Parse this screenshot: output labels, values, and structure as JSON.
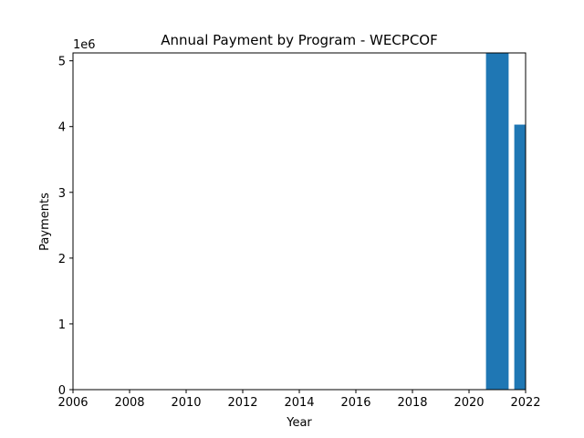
{
  "chart_data": {
    "type": "bar",
    "title": "Annual Payment by Program - WECPCOF",
    "xlabel": "Year",
    "ylabel": "Payments",
    "y_offset_label": "1e6",
    "xlim": [
      2006,
      2022
    ],
    "ylim": [
      0,
      5.12
    ],
    "y_multiplier": 1000000,
    "x_ticks": [
      2006,
      2008,
      2010,
      2012,
      2014,
      2016,
      2018,
      2020,
      2022
    ],
    "y_ticks": [
      0,
      1,
      2,
      3,
      4,
      5
    ],
    "bar_width": 0.8,
    "bars": [
      {
        "x": 2021,
        "value": 5.12
      },
      {
        "x": 2022,
        "value": 4.03
      }
    ],
    "color": "#1f77b4",
    "grid": false,
    "legend": "none"
  }
}
